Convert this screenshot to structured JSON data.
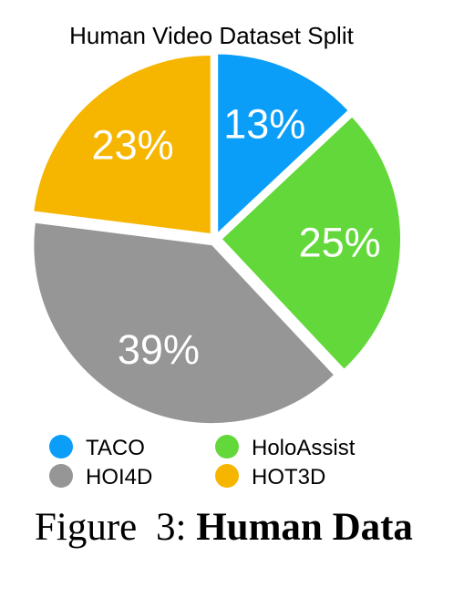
{
  "chart_data": {
    "type": "pie",
    "title": "Human Video Dataset Split",
    "slices": [
      {
        "label": "TACO",
        "value": 13,
        "display": "13%",
        "color": "#0A9EF9"
      },
      {
        "label": "HoloAssist",
        "value": 25,
        "display": "25%",
        "color": "#62D83A"
      },
      {
        "label": "HOI4D",
        "value": 39,
        "display": "39%",
        "color": "#969696"
      },
      {
        "label": "HOT3D",
        "value": 23,
        "display": "23%",
        "color": "#F6B600"
      }
    ],
    "start_angle": "12 o'clock",
    "direction": "clockwise",
    "exploded": true,
    "legend_placement": "bottom"
  },
  "legend": {
    "items": [
      {
        "label": "TACO",
        "color": "#0A9EF9"
      },
      {
        "label": "HoloAssist",
        "color": "#62D83A"
      },
      {
        "label": "HOI4D",
        "color": "#969696"
      },
      {
        "label": "HOT3D",
        "color": "#F6B600"
      }
    ]
  },
  "caption": {
    "label": "Figure 3:",
    "bold": "Human Data"
  }
}
